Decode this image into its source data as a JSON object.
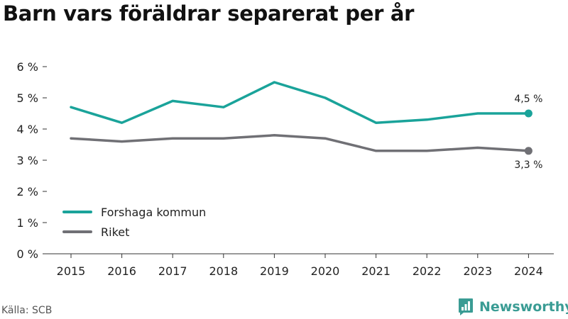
{
  "title": "Barn vars föräldrar separerat per år",
  "source": "Källa: SCB",
  "brand": {
    "name": "Newsworthy",
    "icon": "newsworthy-logo-icon",
    "color": "#3a9c94"
  },
  "chart_data": {
    "type": "line",
    "title": "Barn vars föräldrar separerat per år",
    "xlabel": "",
    "ylabel": "",
    "categories": [
      "2015",
      "2016",
      "2017",
      "2018",
      "2019",
      "2020",
      "2021",
      "2022",
      "2023",
      "2024"
    ],
    "y_ticks": [
      0,
      1,
      2,
      3,
      4,
      5,
      6
    ],
    "y_tick_labels": [
      "0 %",
      "1 %",
      "2 %",
      "3 %",
      "4 %",
      "5 %",
      "6 %"
    ],
    "ylim": [
      0,
      6
    ],
    "grid": false,
    "legend": "bottom-left",
    "series": [
      {
        "name": "Forshaga kommun",
        "color": "#1aa39a",
        "values": [
          4.7,
          4.2,
          4.9,
          4.7,
          5.5,
          5.0,
          4.2,
          4.3,
          4.5,
          4.5
        ],
        "end_label": "4,5 %"
      },
      {
        "name": "Riket",
        "color": "#707075",
        "values": [
          3.7,
          3.6,
          3.7,
          3.7,
          3.8,
          3.7,
          3.3,
          3.3,
          3.4,
          3.3
        ],
        "end_label": "3,3 %"
      }
    ]
  }
}
